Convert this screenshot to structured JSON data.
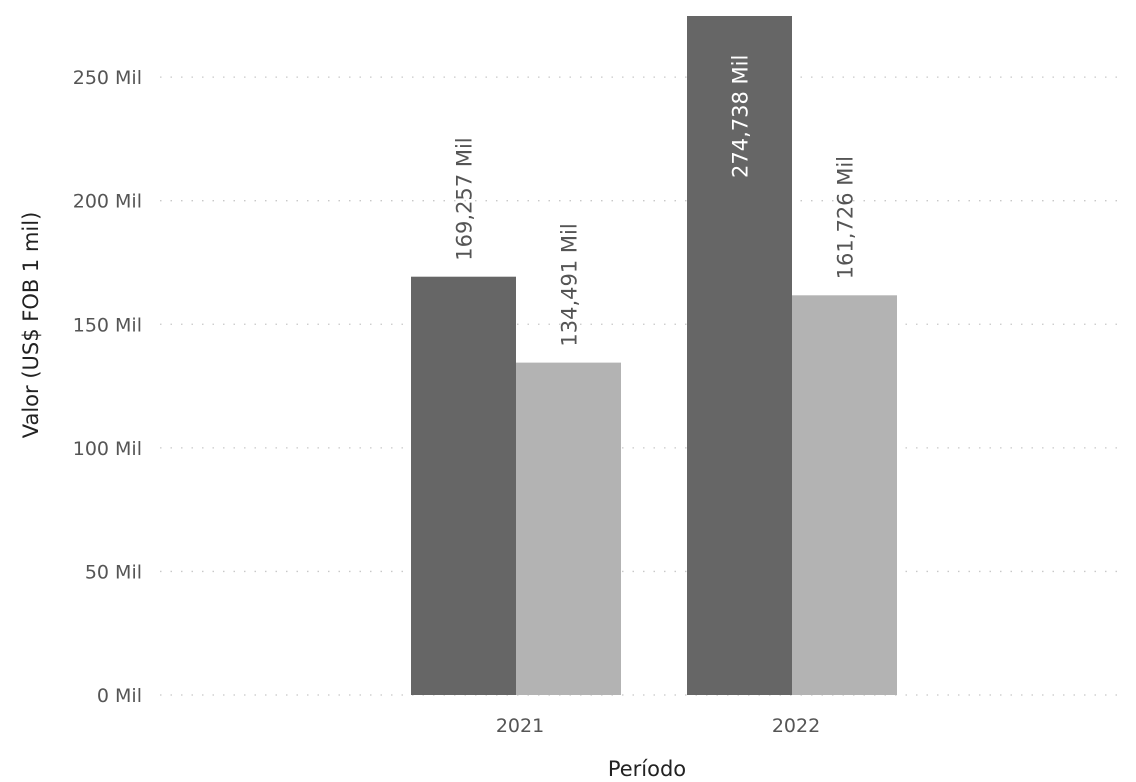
{
  "chart_data": {
    "type": "bar",
    "categories": [
      "2021",
      "2022"
    ],
    "series": [
      {
        "values": [
          169257,
          274738
        ],
        "labels": [
          "169,257 Mil",
          "274,738 Mil"
        ],
        "color": "#666666"
      },
      {
        "values": [
          134491,
          161726
        ],
        "labels": [
          "134,491 Mil",
          "161,726 Mil"
        ],
        "color": "#b3b3b3"
      }
    ],
    "y_ticks": [
      {
        "value": 0,
        "label": "0 Mil"
      },
      {
        "value": 50000,
        "label": "50 Mil"
      },
      {
        "value": 100000,
        "label": "100 Mil"
      },
      {
        "value": 150000,
        "label": "150 Mil"
      },
      {
        "value": 200000,
        "label": "200 Mil"
      },
      {
        "value": 250000,
        "label": "250 Mil"
      }
    ],
    "ylim": [
      0,
      274738
    ],
    "xlabel": "Período",
    "ylabel": "Valor (US$ FOB 1 mil)",
    "grid": true,
    "colors": {
      "series_1": "#666666",
      "series_2": "#b3b3b3"
    }
  }
}
